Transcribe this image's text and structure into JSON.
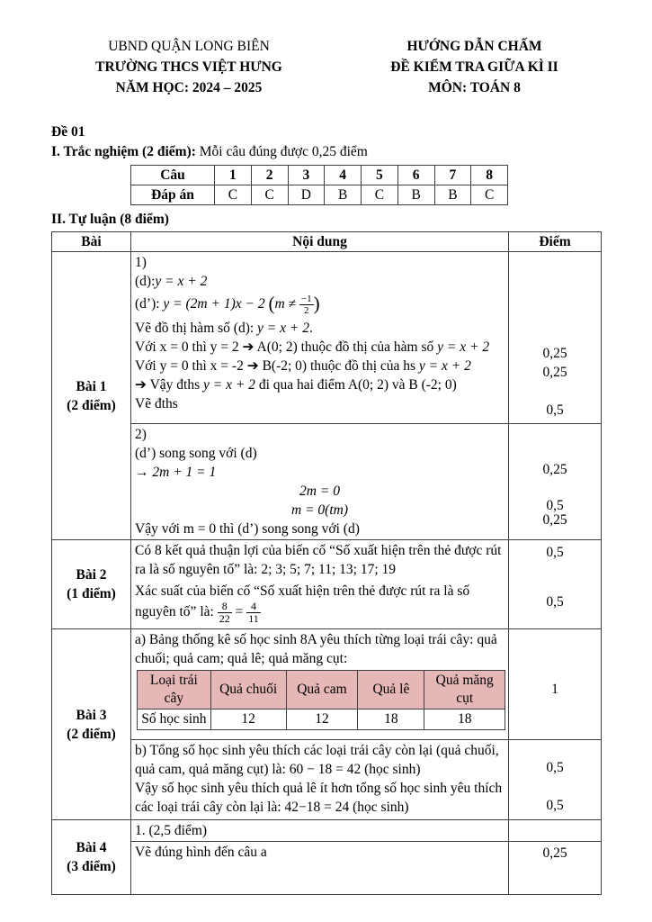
{
  "colors": {
    "page_bg": "#ffffff",
    "text": "#000000",
    "table_border": "#3f3f3f",
    "fruit_header_bg": "#e5b8b7"
  },
  "header": {
    "left1": "UBND QUẬN LONG BIÊN",
    "left2": "TRƯỜNG THCS VIỆT HƯNG",
    "left3": "NĂM HỌC: 2024 – 2025",
    "right1": "HƯỚNG DẪN CHẤM",
    "right2": "ĐỀ KIỂM TRA GIỮA KÌ II",
    "right3": "MÔN: TOÁN 8"
  },
  "de_label": "Đề 01",
  "s1": {
    "title_bold": "I. Trắc nghiệm (2 điểm):",
    "title_rest": " Mỗi câu đúng được 0,25 điểm",
    "mcq": {
      "r1": [
        "Câu",
        "1",
        "2",
        "3",
        "4",
        "5",
        "6",
        "7",
        "8"
      ],
      "r2": [
        "Đáp án",
        "C",
        "C",
        "D",
        "B",
        "C",
        "B",
        "B",
        "C"
      ]
    }
  },
  "s2": {
    "title": "II. Tự luận (8 điểm)",
    "col_bai": "Bài",
    "col_noidung": "Nội dung",
    "col_diem": "Điểm"
  },
  "b1": {
    "label": "Bài 1",
    "points": "(2 điểm)",
    "p1": {
      "l1": "1)",
      "l2a": "(d):",
      "l2b": "y = x + 2",
      "l3a": "(d’): ",
      "l3b": "y = (2m + 1)x − 2 ",
      "l3c": "m ≠ ",
      "l3ft": "−1",
      "l3fb": "2",
      "l4a": "Vẽ đồ thị hàm số (d): ",
      "l4b": "y = x + 2",
      "l4c": ".",
      "l5a": "Với x = 0 thì y = 2 ➔ A(0; 2) thuộc đồ thị của hàm số ",
      "l5b": "y = x + 2",
      "l6a": "Với y = 0 thì x = -2 ➔ B(-2; 0) thuộc đồ thị của hs ",
      "l6b": "y = x + 2",
      "l7a": "➔ Vậy đths ",
      "l7b": "y = x + 2",
      "l7c": " đi qua hai điểm A(0; 2) và B (-2; 0)",
      "l8": "Vẽ đths",
      "score1": "0,25",
      "score2": "0,25",
      "score3": "0,5"
    },
    "p2": {
      "l1": "2)",
      "l2": "(d’) song song với (d)",
      "l3a": "→ ",
      "l3b": "2m + 1 = 1",
      "l4": "2m = 0",
      "l5": "m = 0(tm)",
      "l6": "Vậy với m = 0 thì (d’) song song với (d)",
      "score1": "0,25",
      "score2": "0,5",
      "score3": "0,25"
    }
  },
  "b2": {
    "label": "Bài 2",
    "points": "(1 điểm)",
    "l1": "Có 8 kết quả thuận lợi của biến cố “Số xuất hiện trên thẻ được rút ra là số nguyên tố” là: 2; 3; 5; 7; 11; 13; 17; 19",
    "l2": "Xác suất của biến cố “Số xuất hiện trên thẻ được rút ra là số nguyên tố” là: ",
    "f1t": "8",
    "f1b": "22",
    "eq": " = ",
    "f2t": "4",
    "f2b": "11",
    "score1": "0,5",
    "score2": "0,5"
  },
  "b3": {
    "label": "Bài 3",
    "points": "(2 điểm)",
    "a_text": "a) Bảng thống kê số học sinh 8A yêu thích từng loại trái cây: quả chuối; quả cam; quả lê; quả măng cụt:",
    "fruit_h": [
      "Loại trái cây",
      "Quả chuối",
      "Quả cam",
      "Quả lê",
      "Quả măng cụt"
    ],
    "fruit_r": [
      "Số học sinh",
      "12",
      "12",
      "18",
      "18"
    ],
    "a_score": "1",
    "b_l1": "b) Tổng số học sinh yêu thích các loại trái cây còn lại (quả chuối, quả cam, quả măng cụt) là: 60 − 18 = 42 (học sinh)",
    "b_l2": "Vậy số học sinh yêu thích quả lê ít hơn tổng số học sinh yêu thích các loại trái cây còn lại là: 42−18 = 24 (học sinh)",
    "score1": "0,5",
    "score2": "0,5"
  },
  "b4": {
    "label": "Bài 4",
    "points": "(3 điểm)",
    "r1": "1. (2,5 điểm)",
    "r2": "Vẽ đúng hình đến câu a",
    "score1": "0,25"
  }
}
